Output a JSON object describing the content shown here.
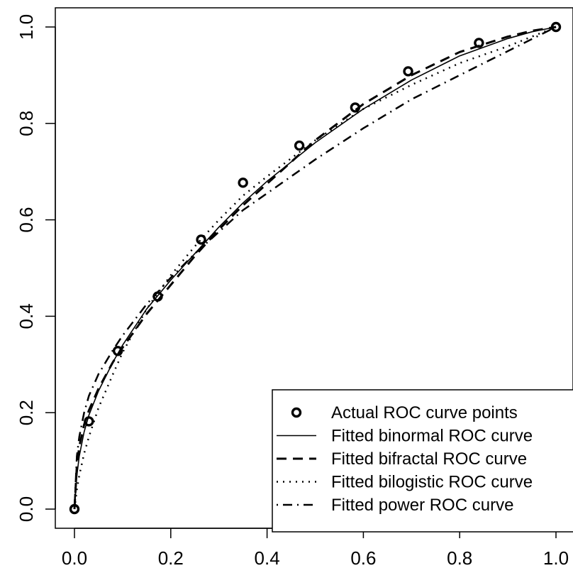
{
  "chart_data": {
    "type": "line",
    "title": "",
    "xlabel": "",
    "ylabel": "",
    "xlim": [
      0,
      1
    ],
    "ylim": [
      0,
      1
    ],
    "x_ticks": [
      "0.0",
      "0.2",
      "0.4",
      "0.6",
      "0.8",
      "1.0"
    ],
    "y_ticks": [
      "0.0",
      "0.2",
      "0.4",
      "0.6",
      "0.8",
      "1.0"
    ],
    "legend_position": "bottom-right",
    "grid": false,
    "points": {
      "name": "Actual ROC curve points",
      "x": [
        0.0,
        0.03,
        0.09,
        0.173,
        0.263,
        0.35,
        0.467,
        0.583,
        0.693,
        0.84,
        1.0
      ],
      "y": [
        0.0,
        0.182,
        0.328,
        0.441,
        0.559,
        0.677,
        0.754,
        0.833,
        0.908,
        0.967,
        1.0
      ]
    },
    "series": [
      {
        "name": "Fitted binormal ROC curve",
        "style": "solid",
        "x": [
          0.0,
          0.005,
          0.01,
          0.02,
          0.03,
          0.05,
          0.08,
          0.1,
          0.15,
          0.2,
          0.25,
          0.3,
          0.35,
          0.4,
          0.5,
          0.6,
          0.7,
          0.8,
          0.9,
          0.95,
          1.0
        ],
        "y": [
          0.0,
          0.07,
          0.11,
          0.16,
          0.195,
          0.245,
          0.305,
          0.34,
          0.415,
          0.475,
          0.53,
          0.585,
          0.635,
          0.68,
          0.76,
          0.83,
          0.89,
          0.94,
          0.976,
          0.99,
          1.0
        ]
      },
      {
        "name": "Fitted bifractal ROC curve",
        "style": "dashed",
        "x": [
          0.0,
          0.005,
          0.01,
          0.02,
          0.03,
          0.05,
          0.08,
          0.1,
          0.15,
          0.2,
          0.25,
          0.3,
          0.35,
          0.4,
          0.5,
          0.6,
          0.7,
          0.8,
          0.9,
          0.95,
          1.0
        ],
        "y": [
          0.0,
          0.09,
          0.13,
          0.175,
          0.205,
          0.25,
          0.305,
          0.335,
          0.405,
          0.465,
          0.525,
          0.58,
          0.63,
          0.675,
          0.765,
          0.84,
          0.9,
          0.948,
          0.98,
          0.992,
          1.0
        ]
      },
      {
        "name": "Fitted bilogistic ROC curve",
        "style": "dotted",
        "x": [
          0.0,
          0.005,
          0.01,
          0.02,
          0.03,
          0.05,
          0.08,
          0.1,
          0.15,
          0.2,
          0.25,
          0.3,
          0.35,
          0.4,
          0.5,
          0.6,
          0.7,
          0.8,
          0.9,
          0.95,
          1.0
        ],
        "y": [
          0.0,
          0.04,
          0.07,
          0.115,
          0.15,
          0.21,
          0.28,
          0.325,
          0.415,
          0.485,
          0.545,
          0.6,
          0.65,
          0.69,
          0.765,
          0.83,
          0.88,
          0.925,
          0.96,
          0.98,
          1.0
        ]
      },
      {
        "name": "Fitted power ROC curve",
        "style": "dotdash",
        "x": [
          0.0,
          0.005,
          0.01,
          0.02,
          0.03,
          0.05,
          0.08,
          0.1,
          0.15,
          0.2,
          0.25,
          0.3,
          0.35,
          0.4,
          0.5,
          0.6,
          0.7,
          0.8,
          0.9,
          0.95,
          1.0
        ],
        "y": [
          0.0,
          0.11,
          0.15,
          0.2,
          0.235,
          0.28,
          0.33,
          0.36,
          0.425,
          0.48,
          0.53,
          0.575,
          0.62,
          0.655,
          0.725,
          0.79,
          0.85,
          0.9,
          0.95,
          0.975,
          1.0
        ]
      }
    ]
  }
}
